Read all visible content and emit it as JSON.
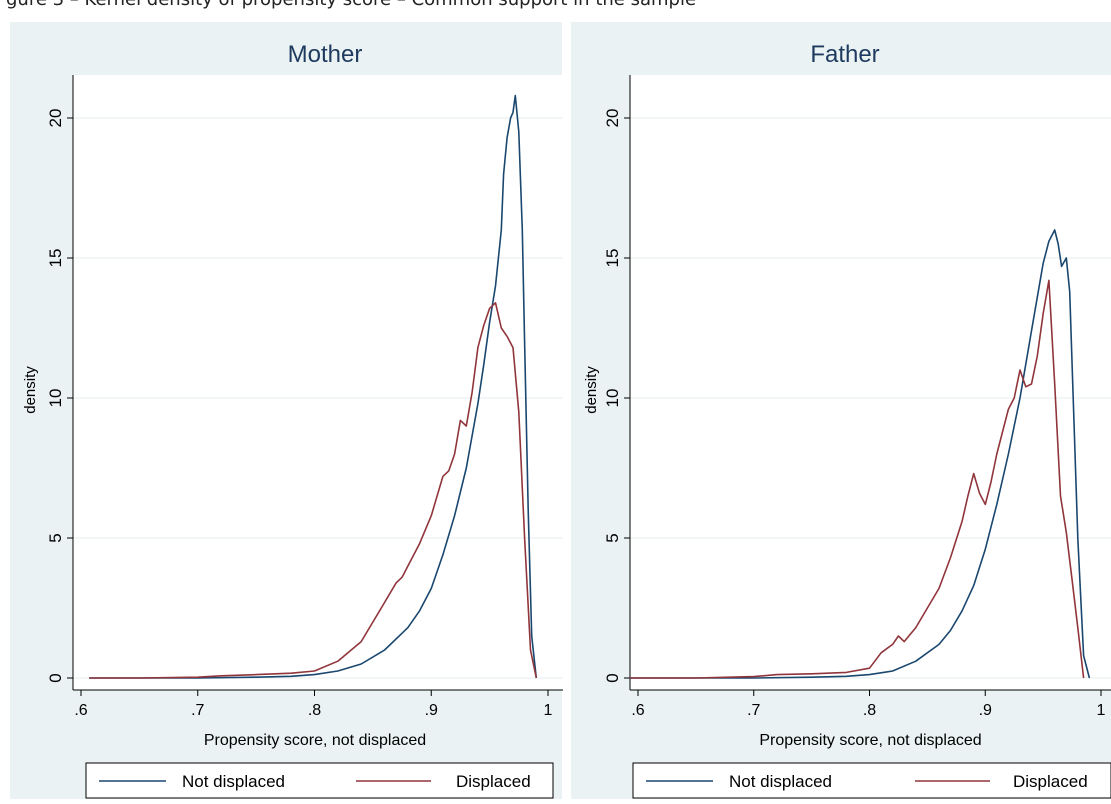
{
  "caption_partial": "gure 3 – Kernel density of propensity score – Common support in the sample",
  "colors": {
    "not_displaced": "#1a476f",
    "displaced": "#90353b",
    "panel_bg": "#eaf2f3",
    "plot_bg": "#ffffff",
    "title": "#1e3a5f"
  },
  "chart_data": [
    {
      "type": "line",
      "title": "Mother",
      "xlabel": "Propensity score, not displaced",
      "ylabel": "density",
      "xlim": [
        0.6,
        1.0
      ],
      "ylim": [
        0,
        21
      ],
      "x_ticks": [
        ".6",
        ".7",
        ".8",
        ".9",
        "1"
      ],
      "y_ticks": [
        "0",
        "5",
        "10",
        "15",
        "20"
      ],
      "grid": true,
      "legend": [
        "Not displaced",
        "Displaced"
      ],
      "series": [
        {
          "name": "Not displaced",
          "x": [
            0.607,
            0.65,
            0.7,
            0.75,
            0.78,
            0.8,
            0.82,
            0.84,
            0.86,
            0.88,
            0.89,
            0.9,
            0.91,
            0.92,
            0.93,
            0.94,
            0.945,
            0.95,
            0.955,
            0.96,
            0.962,
            0.965,
            0.968,
            0.97,
            0.972,
            0.975,
            0.978,
            0.98,
            0.983,
            0.986,
            0.99
          ],
          "y": [
            0,
            0,
            0,
            0.03,
            0.06,
            0.12,
            0.25,
            0.5,
            1.0,
            1.8,
            2.4,
            3.2,
            4.4,
            5.8,
            7.5,
            9.8,
            11.2,
            12.7,
            14.0,
            16.0,
            18.0,
            19.3,
            20.0,
            20.2,
            20.8,
            19.5,
            16.0,
            12.0,
            6.0,
            1.5,
            0
          ]
        },
        {
          "name": "Displaced",
          "x": [
            0.607,
            0.65,
            0.7,
            0.72,
            0.75,
            0.78,
            0.8,
            0.82,
            0.84,
            0.85,
            0.86,
            0.87,
            0.875,
            0.88,
            0.89,
            0.9,
            0.91,
            0.915,
            0.92,
            0.925,
            0.93,
            0.935,
            0.94,
            0.945,
            0.95,
            0.955,
            0.96,
            0.965,
            0.97,
            0.975,
            0.98,
            0.985,
            0.99
          ],
          "y": [
            0,
            0,
            0.03,
            0.08,
            0.12,
            0.17,
            0.25,
            0.6,
            1.3,
            2.0,
            2.7,
            3.4,
            3.6,
            4.0,
            4.8,
            5.8,
            7.2,
            7.4,
            8.0,
            9.2,
            9.0,
            10.2,
            11.8,
            12.6,
            13.2,
            13.4,
            12.5,
            12.2,
            11.8,
            9.5,
            5.0,
            1.0,
            0
          ]
        }
      ]
    },
    {
      "type": "line",
      "title": "Father",
      "xlabel": "Propensity score, not displaced",
      "ylabel": "density",
      "xlim": [
        0.6,
        1.0
      ],
      "ylim": [
        0,
        21
      ],
      "x_ticks": [
        ".6",
        ".7",
        ".8",
        ".9",
        "1"
      ],
      "y_ticks": [
        "0",
        "5",
        "10",
        "15",
        "20"
      ],
      "grid": true,
      "legend": [
        "Not displaced",
        "Displaced"
      ],
      "series": [
        {
          "name": "Not displaced",
          "x": [
            0.593,
            0.65,
            0.7,
            0.75,
            0.78,
            0.8,
            0.82,
            0.84,
            0.86,
            0.87,
            0.88,
            0.89,
            0.9,
            0.91,
            0.92,
            0.93,
            0.94,
            0.945,
            0.95,
            0.955,
            0.96,
            0.963,
            0.966,
            0.97,
            0.973,
            0.976,
            0.98,
            0.985,
            0.99
          ],
          "y": [
            0,
            0,
            0,
            0.03,
            0.06,
            0.12,
            0.25,
            0.6,
            1.2,
            1.7,
            2.4,
            3.3,
            4.6,
            6.2,
            8.0,
            10.0,
            12.4,
            13.6,
            14.8,
            15.6,
            16.0,
            15.5,
            14.7,
            15.0,
            13.8,
            10.0,
            5.0,
            0.8,
            0
          ]
        },
        {
          "name": "Displaced",
          "x": [
            0.593,
            0.65,
            0.7,
            0.72,
            0.75,
            0.78,
            0.8,
            0.81,
            0.82,
            0.825,
            0.83,
            0.84,
            0.85,
            0.86,
            0.87,
            0.88,
            0.885,
            0.89,
            0.895,
            0.9,
            0.905,
            0.91,
            0.92,
            0.925,
            0.93,
            0.935,
            0.94,
            0.945,
            0.95,
            0.955,
            0.96,
            0.965,
            0.97,
            0.975,
            0.98,
            0.985
          ],
          "y": [
            0,
            0,
            0.05,
            0.12,
            0.15,
            0.2,
            0.35,
            0.9,
            1.2,
            1.5,
            1.3,
            1.8,
            2.5,
            3.2,
            4.3,
            5.6,
            6.5,
            7.3,
            6.6,
            6.2,
            7.0,
            8.0,
            9.6,
            10.0,
            11.0,
            10.4,
            10.5,
            11.5,
            13.0,
            14.2,
            10.5,
            6.5,
            5.2,
            3.5,
            1.8,
            0
          ]
        }
      ]
    }
  ]
}
